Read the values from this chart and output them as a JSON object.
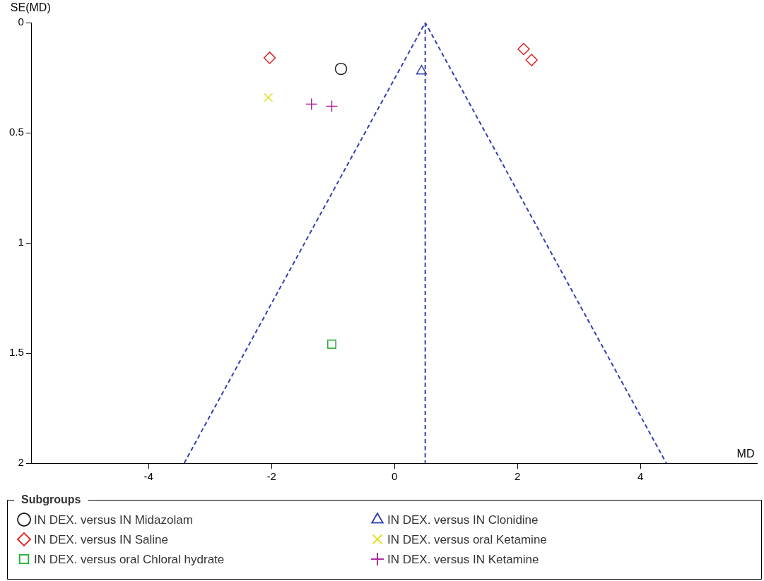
{
  "chart_data": {
    "type": "scatter",
    "xlabel": "MD",
    "ylabel": "SE(MD)",
    "legend_title": "Subgroups",
    "legend": "bottom",
    "grid": false,
    "xlim": [
      -5.9,
      5.9
    ],
    "xticks": [
      -4,
      -2,
      0,
      2,
      4
    ],
    "ylim": [
      2,
      0
    ],
    "yticks": [
      0,
      0.5,
      1,
      1.5,
      2
    ],
    "ref_lines": [
      {
        "axis": "x",
        "value": 0.5,
        "color": "#3340b0",
        "line_style": "dashed"
      }
    ],
    "series": [
      {
        "name": "IN DEX. versus IN Midazolam",
        "color": "#222222",
        "marker": "circle",
        "x": [
          -0.87
        ],
        "values": [
          0.21
        ]
      },
      {
        "name": "IN DEX. versus IN Clonidine",
        "color": "#3340b0",
        "marker": "triangle",
        "x": [
          0.44
        ],
        "values": [
          0.22
        ]
      },
      {
        "name": "IN DEX. versus IN Saline",
        "color": "#dd2222",
        "marker": "diamond",
        "x": [
          -2.03,
          2.1,
          2.23
        ],
        "values": [
          0.16,
          0.12,
          0.17
        ]
      },
      {
        "name": "IN DEX. versus oral Ketamine",
        "color": "#e0e020",
        "marker": "x",
        "x": [
          -2.05
        ],
        "values": [
          0.34
        ]
      },
      {
        "name": "IN DEX. versus oral Chloral hydrate",
        "color": "#22aa33",
        "marker": "square",
        "x": [
          -1.02
        ],
        "values": [
          1.46
        ]
      },
      {
        "name": "IN DEX. versus IN Ketamine",
        "color": "#aa2299",
        "marker": "cross",
        "x": [
          -1.35,
          -1.02
        ],
        "values": [
          0.37,
          0.38
        ]
      },
      {
        "type": "line",
        "color": "#3340b0",
        "marker": "none",
        "line_style": "dashed",
        "x": [
          -3.42,
          0.5,
          4.42
        ],
        "values": [
          2,
          0,
          2
        ]
      }
    ]
  }
}
